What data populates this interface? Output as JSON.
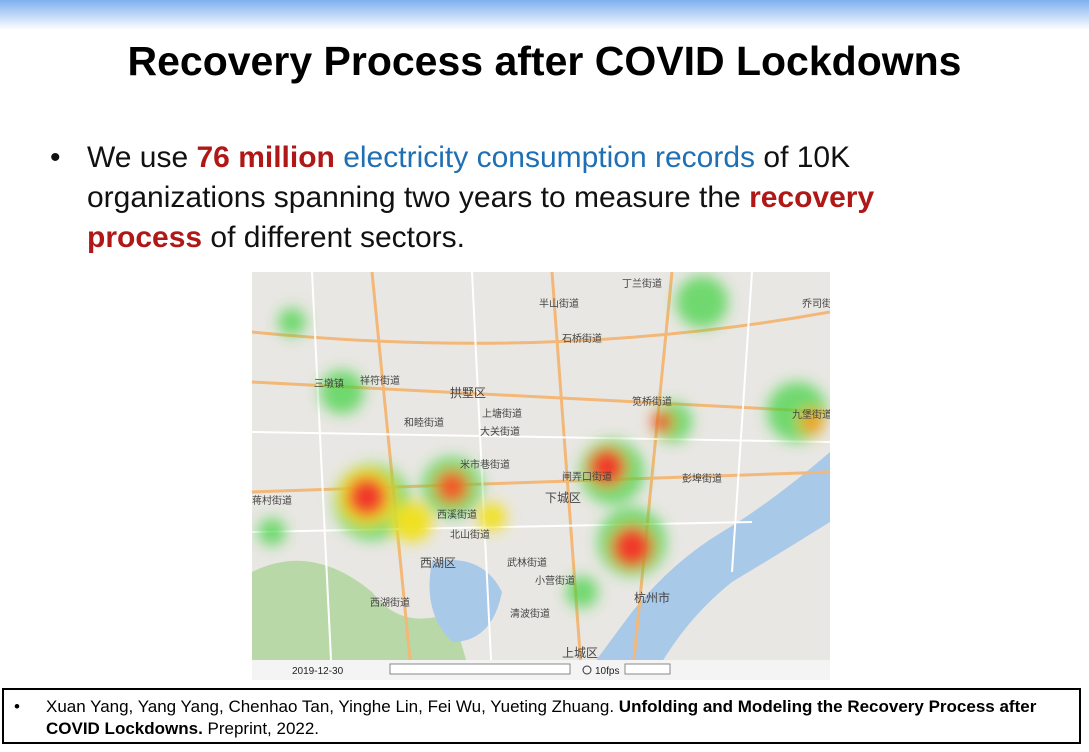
{
  "slide": {
    "title": "Recovery Process after COVID Lockdowns",
    "bullet": {
      "marker": "•",
      "segments": [
        "We use ",
        "76 million",
        " electricity consumption records",
        " of 10K organizations spanning two years to measure the ",
        "recovery process",
        " of different sectors."
      ]
    },
    "map": {
      "labels": [
        "半山街道",
        "丁兰街道",
        "石桥街道",
        "祥符街道",
        "三墩镇",
        "拱墅区",
        "上塘街道",
        "大关街道",
        "和睦街道",
        "米市巷街道",
        "笕桥街道",
        "九堡街道",
        "闸弄口街道",
        "彭埠街道",
        "下城区",
        "西溪街道",
        "北山街道",
        "西湖区",
        "武林街道",
        "小营街道",
        "清波街道",
        "西湖街道",
        "杭州市",
        "上城区",
        "蒋村街道",
        "乔司街道"
      ],
      "player": {
        "date": "2019-12-30",
        "speed": "10fps"
      }
    },
    "footer": {
      "marker": "•",
      "authors": "Xuan Yang, Yang Yang, Chenhao Tan, Yinghe Lin, Fei Wu, Yueting Zhuang. ",
      "paper_title": "Unfolding and Modeling the Recovery Process after COVID Lockdowns.",
      "venue": " Preprint, 2022."
    }
  }
}
